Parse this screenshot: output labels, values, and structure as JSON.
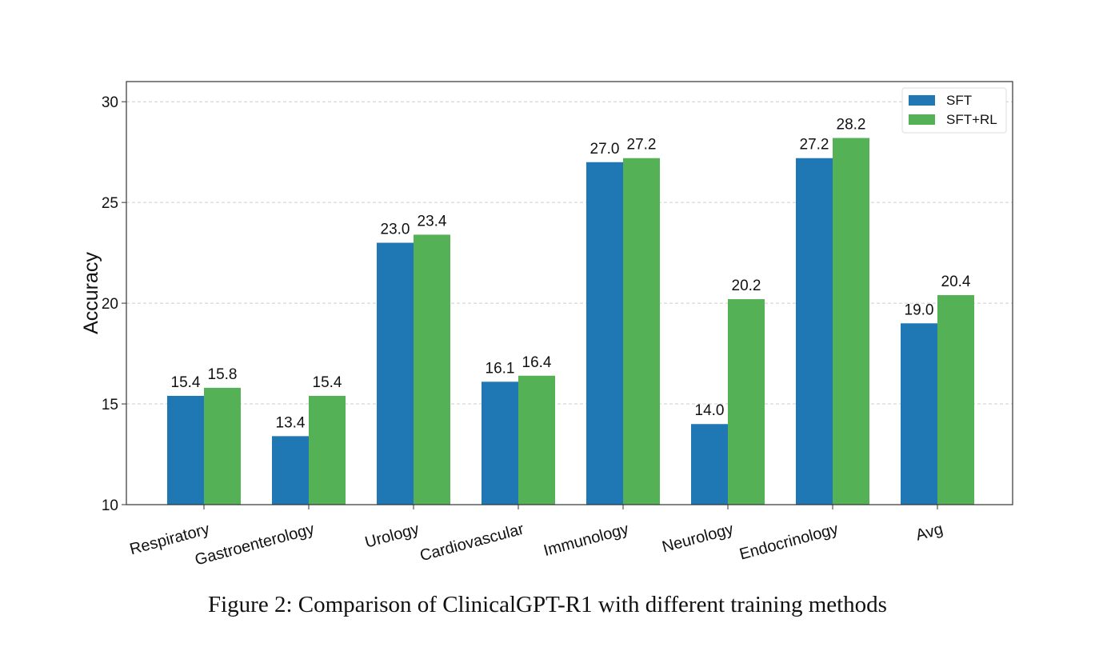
{
  "caption": "Figure 2: Comparison of ClinicalGPT-R1 with different training methods",
  "chart_data": {
    "type": "bar",
    "title": "",
    "xlabel": "",
    "ylabel": "Accuracy",
    "ylim": [
      10,
      31
    ],
    "yticks": [
      10,
      15,
      20,
      25,
      30
    ],
    "grid": "horizontal dashed",
    "legend_position": "top-right",
    "categories": [
      "Respiratory",
      "Gastroenterology",
      "Urology",
      "Cardiovascular",
      "Immunology",
      "Neurology",
      "Endocrinology",
      "Avg"
    ],
    "series": [
      {
        "name": "SFT",
        "color": "#1f77b4",
        "values": [
          15.4,
          13.4,
          23.0,
          16.1,
          27.0,
          14.0,
          27.2,
          19.0
        ]
      },
      {
        "name": "SFT+RL",
        "color": "#55b155",
        "values": [
          15.8,
          15.4,
          23.4,
          16.4,
          27.2,
          20.2,
          28.2,
          20.4
        ]
      }
    ]
  }
}
